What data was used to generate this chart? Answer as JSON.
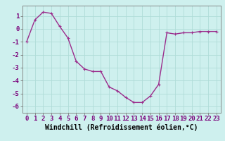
{
  "x": [
    0,
    1,
    2,
    3,
    4,
    5,
    6,
    7,
    8,
    9,
    10,
    11,
    12,
    13,
    14,
    15,
    16,
    17,
    18,
    19,
    20,
    21,
    22,
    23
  ],
  "y": [
    -1.0,
    0.7,
    1.3,
    1.2,
    0.2,
    -0.7,
    -2.5,
    -3.1,
    -3.3,
    -3.3,
    -4.5,
    -4.8,
    -5.3,
    -5.7,
    -5.7,
    -5.2,
    -4.3,
    -0.3,
    -0.4,
    -0.3,
    -0.3,
    -0.2,
    -0.2,
    -0.2
  ],
  "line_color": "#9b2d8c",
  "marker": "+",
  "marker_size": 3,
  "bg_color": "#cef0ee",
  "grid_color": "#b0dcd8",
  "xlabel": "Windchill (Refroidissement éolien,°C)",
  "xlim": [
    -0.5,
    23.5
  ],
  "ylim": [
    -6.5,
    1.8
  ],
  "xticks": [
    0,
    1,
    2,
    3,
    4,
    5,
    6,
    7,
    8,
    9,
    10,
    11,
    12,
    13,
    14,
    15,
    16,
    17,
    18,
    19,
    20,
    21,
    22,
    23
  ],
  "yticks": [
    -6,
    -5,
    -4,
    -3,
    -2,
    -1,
    0,
    1
  ],
  "tick_fontsize": 6.5,
  "xlabel_fontsize": 7,
  "line_width": 1.0,
  "spine_color": "#7a7a7a"
}
